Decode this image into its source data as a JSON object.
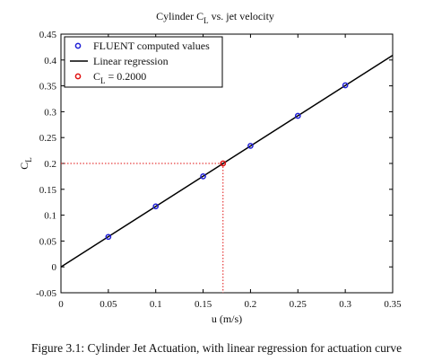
{
  "chart_data": {
    "type": "scatter",
    "title": "Cylinder C",
    "title_sub": "L",
    "title_rest": " vs. jet velocity",
    "xlabel": "u (m/s)",
    "ylabel": "C",
    "ylabel_sub": "L",
    "xlim": [
      0,
      0.35
    ],
    "ylim": [
      -0.05,
      0.45
    ],
    "xticks": [
      "0",
      "0.05",
      "0.1",
      "0.15",
      "0.2",
      "0.25",
      "0.3",
      "0.35"
    ],
    "yticks": [
      "-0.05",
      "0",
      "0.05",
      "0.1",
      "0.15",
      "0.2",
      "0.25",
      "0.3",
      "0.35",
      "0.4",
      "0.45"
    ],
    "grid": false,
    "legend_position": "top-left",
    "series": [
      {
        "name": "FLUENT computed values",
        "kind": "markers",
        "color": "#1f1fd6",
        "x": [
          0.05,
          0.1,
          0.15,
          0.2,
          0.25,
          0.3
        ],
        "y": [
          0.058,
          0.117,
          0.175,
          0.234,
          0.292,
          0.351
        ]
      },
      {
        "name": "Linear regression",
        "kind": "line",
        "color": "#000000",
        "x": [
          0,
          0.35
        ],
        "y": [
          0.0,
          0.409
        ]
      },
      {
        "name": "C",
        "name_sub": "L",
        "name_rest": " = 0.2000",
        "kind": "markers",
        "color": "#e01010",
        "x": [
          0.171
        ],
        "y": [
          0.2
        ]
      }
    ],
    "guide_color": "#e01010"
  },
  "caption": "Figure 3.1: Cylinder Jet Actuation, with linear regression for actuation curve"
}
